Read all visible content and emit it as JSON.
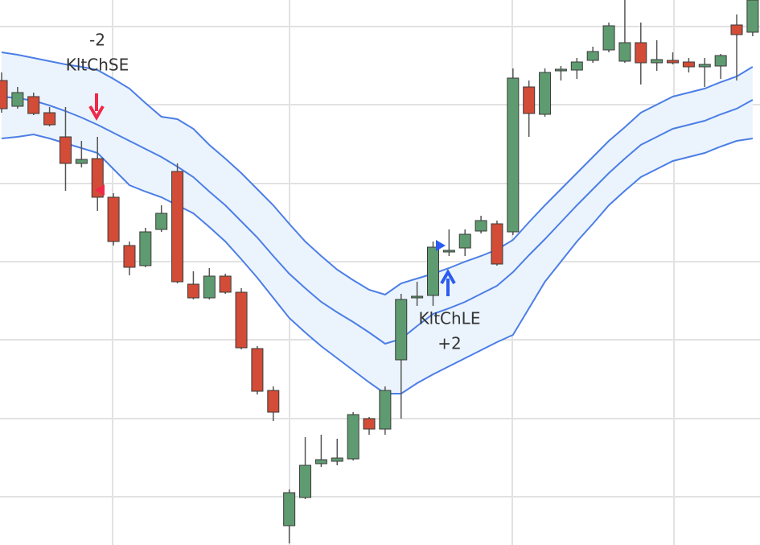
{
  "chart_data": {
    "type": "candlestick",
    "categories": [
      null,
      null,
      null,
      null,
      null,
      null,
      null,
      null,
      null,
      null,
      null,
      null,
      null,
      null,
      null,
      null,
      null,
      null,
      null,
      null,
      null,
      null,
      null,
      null,
      null,
      null,
      null,
      null,
      null,
      null,
      null,
      null,
      null,
      null,
      null,
      null,
      null,
      null,
      null,
      null,
      null,
      null,
      null,
      null,
      null,
      null,
      null,
      null
    ],
    "open": [
      577,
      545,
      557,
      537,
      507,
      474,
      480,
      432,
      372,
      347,
      392,
      464,
      324,
      307,
      334,
      314,
      244,
      192,
      24,
      59,
      101,
      104,
      107,
      157,
      144,
      230,
      307,
      310,
      364,
      369,
      390,
      399,
      389,
      569,
      535,
      589,
      590,
      602,
      615,
      601,
      624,
      599,
      602,
      600,
      594,
      595,
      646,
      637
    ],
    "high": [
      587,
      569,
      562,
      544,
      544,
      502,
      507,
      437,
      377,
      394,
      422,
      474,
      340,
      344,
      337,
      319,
      247,
      197,
      69,
      134,
      137,
      132,
      165,
      159,
      197,
      312,
      327,
      377,
      392,
      392,
      409,
      403,
      592,
      577,
      592,
      595,
      605,
      619,
      649,
      677,
      649,
      627,
      612,
      605,
      605,
      610,
      659,
      677
    ],
    "low": [
      537,
      542,
      534,
      520,
      440,
      469,
      415,
      372,
      335,
      345,
      389,
      325,
      305,
      305,
      312,
      243,
      187,
      154,
      2,
      57,
      97,
      99,
      105,
      137,
      137,
      157,
      297,
      297,
      359,
      359,
      387,
      347,
      385,
      507,
      532,
      577,
      579,
      599,
      612,
      599,
      572,
      589,
      597,
      587,
      569,
      579,
      577,
      632
    ],
    "close": [
      542,
      562,
      536,
      522,
      474,
      479,
      432,
      377,
      345,
      389,
      412,
      327,
      307,
      334,
      314,
      245,
      191,
      165,
      65,
      99,
      106,
      108,
      162,
      144,
      192,
      305,
      309,
      370,
      366,
      386,
      403,
      349,
      580,
      536,
      587,
      591,
      600,
      613,
      645,
      624,
      599,
      603,
      599,
      594,
      597,
      608,
      634,
      677
    ],
    "up_color": "#5f9b70",
    "down_color": "#d24c37",
    "channel": {
      "color": "#4c7ee6",
      "fill": "#ebf4fc",
      "upper": [
        612,
        609,
        605,
        601,
        597,
        594,
        590,
        579,
        567,
        549,
        532,
        529,
        517,
        497,
        480,
        462,
        442,
        422,
        399,
        377,
        359,
        342,
        329,
        317,
        311,
        325,
        331,
        337,
        344,
        352,
        359,
        367,
        379,
        401,
        422,
        442,
        462,
        482,
        502,
        519,
        537,
        547,
        557,
        562,
        567,
        575,
        582,
        594
      ],
      "middle": [
        557,
        555,
        552,
        546,
        539,
        531,
        522,
        512,
        502,
        492,
        482,
        470,
        457,
        439,
        422,
        402,
        382,
        359,
        337,
        319,
        302,
        289,
        277,
        264,
        250,
        256,
        272,
        287,
        294,
        302,
        312,
        322,
        339,
        360,
        380,
        401,
        422,
        442,
        462,
        480,
        497,
        507,
        517,
        522,
        527,
        535,
        542,
        553
      ],
      "lower": [
        505,
        507,
        510,
        505,
        499,
        493,
        487,
        467,
        447,
        439,
        432,
        422,
        412,
        395,
        377,
        355,
        332,
        307,
        282,
        264,
        247,
        232,
        217,
        202,
        188,
        188,
        201,
        212,
        222,
        232,
        242,
        252,
        261,
        294,
        327,
        352,
        377,
        399,
        422,
        440,
        457,
        467,
        477,
        482,
        487,
        495,
        502,
        505
      ]
    },
    "ylim": [
      0,
      677
    ],
    "yticks": [
      60,
      157,
      255,
      352,
      449,
      547,
      644
    ],
    "grid": true,
    "annotations": [
      {
        "lines": [
          "-2",
          "KltChSE"
        ]
      },
      {
        "lines": [
          "KltChLE",
          "+2"
        ]
      }
    ]
  }
}
